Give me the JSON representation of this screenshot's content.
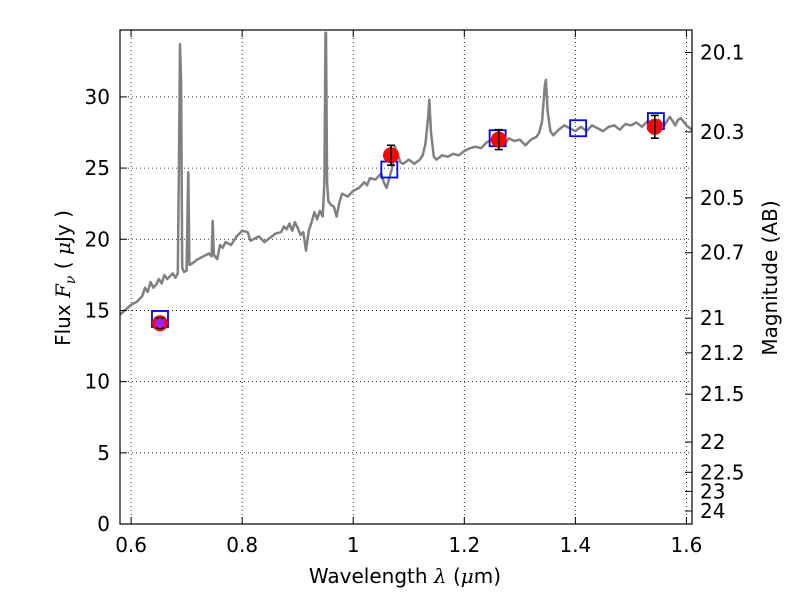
{
  "chart_data": {
    "type": "scatter",
    "xlabel": "Wavelength",
    "xlabel_math": "λ",
    "xlabel_unit_open": " (",
    "xlabel_unit_math": "μ",
    "xlabel_unit_close": "m)",
    "ylabel": "Flux",
    "ylabel_math": "F",
    "ylabel_math_sub": "ν",
    "ylabel_unit_open": " ( ",
    "ylabel_unit_math": "μ",
    "ylabel_unit_close": "Jy )",
    "y2label": "Magnitude (AB)",
    "xlim": [
      0.58,
      1.61
    ],
    "ylim": [
      0,
      34.7
    ],
    "grid": true,
    "x_ticks": [
      {
        "value": 0.6,
        "label": "0.6"
      },
      {
        "value": 0.8,
        "label": "0.8"
      },
      {
        "value": 1.0,
        "label": "1"
      },
      {
        "value": 1.2,
        "label": "1.2"
      },
      {
        "value": 1.4,
        "label": "1.4"
      },
      {
        "value": 1.6,
        "label": "1.6"
      }
    ],
    "y_ticks": [
      {
        "value": 0,
        "label": "0"
      },
      {
        "value": 5,
        "label": "5"
      },
      {
        "value": 10,
        "label": "10"
      },
      {
        "value": 15,
        "label": "15"
      },
      {
        "value": 20,
        "label": "20"
      },
      {
        "value": 25,
        "label": "25"
      },
      {
        "value": 30,
        "label": "30"
      }
    ],
    "y2_ticks": [
      {
        "mag": 20.1,
        "label": "20.1"
      },
      {
        "mag": 20.3,
        "label": "20.3"
      },
      {
        "mag": 20.5,
        "label": "20.5"
      },
      {
        "mag": 20.7,
        "label": "20.7"
      },
      {
        "mag": 21.0,
        "label": "21"
      },
      {
        "mag": 21.2,
        "label": "21.2"
      },
      {
        "mag": 21.5,
        "label": "21.5"
      },
      {
        "mag": 22.0,
        "label": "22"
      },
      {
        "mag": 22.5,
        "label": "22.5"
      },
      {
        "mag": 23.0,
        "label": "23"
      },
      {
        "mag": 24.0,
        "label": "24"
      }
    ],
    "spectrum": {
      "color": "#808080",
      "points": [
        [
          0.58,
          14.7
        ],
        [
          0.6,
          15.4
        ],
        [
          0.61,
          15.6
        ],
        [
          0.62,
          16.0
        ],
        [
          0.625,
          16.6
        ],
        [
          0.63,
          16.3
        ],
        [
          0.635,
          17.0
        ],
        [
          0.64,
          16.6
        ],
        [
          0.645,
          16.8
        ],
        [
          0.65,
          17.2
        ],
        [
          0.655,
          16.9
        ],
        [
          0.66,
          17.5
        ],
        [
          0.665,
          17.2
        ],
        [
          0.67,
          17.4
        ],
        [
          0.675,
          17.6
        ],
        [
          0.68,
          17.3
        ],
        [
          0.684,
          17.6
        ],
        [
          0.686,
          25.0
        ],
        [
          0.688,
          33.7
        ],
        [
          0.69,
          31.0
        ],
        [
          0.692,
          18.0
        ],
        [
          0.695,
          17.7
        ],
        [
          0.7,
          17.8
        ],
        [
          0.702,
          23.0
        ],
        [
          0.703,
          24.7
        ],
        [
          0.705,
          18.2
        ],
        [
          0.71,
          18.3
        ],
        [
          0.72,
          18.6
        ],
        [
          0.73,
          18.8
        ],
        [
          0.74,
          19.0
        ],
        [
          0.745,
          18.8
        ],
        [
          0.747,
          21.3
        ],
        [
          0.749,
          18.9
        ],
        [
          0.755,
          18.6
        ],
        [
          0.76,
          19.6
        ],
        [
          0.765,
          19.4
        ],
        [
          0.77,
          19.8
        ],
        [
          0.78,
          19.6
        ],
        [
          0.79,
          20.2
        ],
        [
          0.8,
          20.6
        ],
        [
          0.81,
          20.5
        ],
        [
          0.815,
          19.9
        ],
        [
          0.82,
          20.0
        ],
        [
          0.83,
          20.2
        ],
        [
          0.84,
          19.8
        ],
        [
          0.85,
          20.1
        ],
        [
          0.86,
          20.4
        ],
        [
          0.87,
          20.5
        ],
        [
          0.875,
          20.9
        ],
        [
          0.88,
          20.7
        ],
        [
          0.885,
          21.1
        ],
        [
          0.89,
          20.6
        ],
        [
          0.895,
          21.2
        ],
        [
          0.9,
          20.8
        ],
        [
          0.905,
          20.3
        ],
        [
          0.91,
          20.5
        ],
        [
          0.915,
          19.2
        ],
        [
          0.92,
          20.6
        ],
        [
          0.925,
          21.2
        ],
        [
          0.93,
          21.9
        ],
        [
          0.935,
          21.4
        ],
        [
          0.94,
          22.0
        ],
        [
          0.945,
          21.6
        ],
        [
          0.948,
          24.0
        ],
        [
          0.95,
          34.5
        ],
        [
          0.951,
          34.5
        ],
        [
          0.953,
          24.0
        ],
        [
          0.955,
          22.7
        ],
        [
          0.96,
          22.4
        ],
        [
          0.965,
          22.3
        ],
        [
          0.97,
          21.6
        ],
        [
          0.975,
          22.6
        ],
        [
          0.98,
          23.2
        ],
        [
          0.99,
          23.0
        ],
        [
          1.0,
          23.4
        ],
        [
          1.01,
          23.6
        ],
        [
          1.02,
          24.0
        ],
        [
          1.025,
          23.8
        ],
        [
          1.03,
          24.3
        ],
        [
          1.04,
          24.2
        ],
        [
          1.05,
          24.6
        ],
        [
          1.055,
          24.0
        ],
        [
          1.06,
          23.6
        ],
        [
          1.065,
          24.3
        ],
        [
          1.07,
          25.0
        ],
        [
          1.075,
          26.5
        ],
        [
          1.08,
          26.0
        ],
        [
          1.085,
          25.4
        ],
        [
          1.09,
          25.3
        ],
        [
          1.1,
          25.6
        ],
        [
          1.11,
          25.3
        ],
        [
          1.12,
          25.6
        ],
        [
          1.125,
          25.9
        ],
        [
          1.13,
          26.7
        ],
        [
          1.135,
          28.6
        ],
        [
          1.137,
          29.8
        ],
        [
          1.14,
          27.5
        ],
        [
          1.145,
          25.8
        ],
        [
          1.15,
          25.6
        ],
        [
          1.16,
          25.9
        ],
        [
          1.17,
          25.8
        ],
        [
          1.18,
          26.0
        ],
        [
          1.19,
          25.9
        ],
        [
          1.2,
          26.2
        ],
        [
          1.21,
          26.4
        ],
        [
          1.22,
          26.5
        ],
        [
          1.23,
          26.4
        ],
        [
          1.24,
          26.8
        ],
        [
          1.25,
          27.0
        ],
        [
          1.26,
          26.9
        ],
        [
          1.27,
          27.0
        ],
        [
          1.275,
          26.8
        ],
        [
          1.28,
          27.1
        ],
        [
          1.29,
          26.9
        ],
        [
          1.3,
          27.0
        ],
        [
          1.31,
          26.6
        ],
        [
          1.32,
          27.0
        ],
        [
          1.33,
          27.2
        ],
        [
          1.335,
          27.5
        ],
        [
          1.34,
          28.3
        ],
        [
          1.345,
          30.8
        ],
        [
          1.347,
          31.2
        ],
        [
          1.35,
          29.0
        ],
        [
          1.355,
          27.6
        ],
        [
          1.36,
          27.3
        ],
        [
          1.37,
          27.7
        ],
        [
          1.38,
          28.0
        ],
        [
          1.39,
          27.8
        ],
        [
          1.4,
          27.6
        ],
        [
          1.41,
          27.9
        ],
        [
          1.42,
          27.6
        ],
        [
          1.43,
          28.0
        ],
        [
          1.44,
          27.8
        ],
        [
          1.45,
          27.6
        ],
        [
          1.46,
          27.9
        ],
        [
          1.47,
          28.0
        ],
        [
          1.48,
          27.7
        ],
        [
          1.49,
          28.1
        ],
        [
          1.5,
          28.0
        ],
        [
          1.51,
          28.2
        ],
        [
          1.52,
          27.9
        ],
        [
          1.53,
          28.3
        ],
        [
          1.54,
          28.1
        ],
        [
          1.55,
          28.4
        ],
        [
          1.56,
          28.0
        ],
        [
          1.57,
          28.6
        ],
        [
          1.575,
          28.3
        ],
        [
          1.58,
          28.0
        ],
        [
          1.585,
          28.4
        ],
        [
          1.59,
          28.5
        ],
        [
          1.6,
          28.0
        ],
        [
          1.61,
          27.7
        ]
      ]
    },
    "model_photometry": {
      "color": "#0000ff",
      "points": [
        {
          "x": 0.652,
          "y": 14.4
        },
        {
          "x": 1.065,
          "y": 24.9
        },
        {
          "x": 1.26,
          "y": 27.1
        },
        {
          "x": 1.405,
          "y": 27.8
        },
        {
          "x": 1.545,
          "y": 28.3
        }
      ]
    },
    "observed_photometry": {
      "color": "#ff0000",
      "error_color": "#000000",
      "points": [
        {
          "x": 0.652,
          "y": 14.1,
          "err": 0.35
        },
        {
          "x": 1.068,
          "y": 25.9,
          "err": 0.7
        },
        {
          "x": 1.262,
          "y": 27.0,
          "err": 0.7
        },
        {
          "x": 1.543,
          "y": 27.9,
          "err": 0.8
        }
      ]
    },
    "highlight_point": {
      "x": 0.652,
      "y": 14.1,
      "color": "#a020f0"
    }
  }
}
